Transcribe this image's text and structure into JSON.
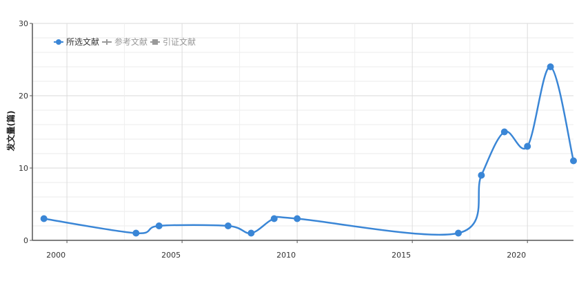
{
  "chart_data": {
    "type": "line",
    "title": "",
    "xlabel": "",
    "ylabel": "发文量(篇)",
    "xlim": [
      1998.5,
      2022.0
    ],
    "ylim": [
      0,
      30
    ],
    "x_ticks": [
      2000,
      2005,
      2010,
      2015,
      2020
    ],
    "y_ticks": [
      0,
      10,
      20,
      30
    ],
    "x_tick_labels": [
      "2000",
      "2005",
      "2010",
      "2015",
      "2020"
    ],
    "y_tick_labels": [
      "0",
      "10",
      "20",
      "30"
    ],
    "grid": "on",
    "legend_position": "top-left",
    "legend": [
      {
        "label": "所选文献",
        "color": "#3a86d6",
        "active": true
      },
      {
        "label": "参考文献",
        "color": "#999999",
        "active": false
      },
      {
        "label": "引证文献",
        "color": "#999999",
        "active": false
      }
    ],
    "series": [
      {
        "name": "所选文献",
        "color": "#3a86d6",
        "x": [
          1999,
          2003,
          2004,
          2007,
          2008,
          2009,
          2010,
          2017,
          2018,
          2019,
          2020,
          2021,
          2022
        ],
        "y": [
          3,
          1,
          2,
          2,
          1,
          3,
          3,
          1,
          9,
          15,
          13,
          24,
          11
        ]
      }
    ]
  }
}
